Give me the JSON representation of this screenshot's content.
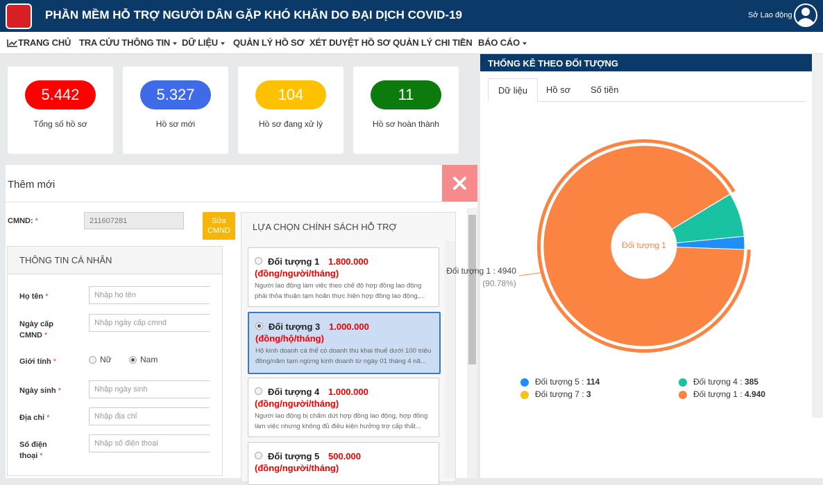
{
  "header": {
    "title": "PHẦN MỀM HỖ TRỢ NGƯỜI DÂN GẶP KHÓ KHĂN DO ĐẠI DỊCH COVID-19",
    "user": "Sở Lao động"
  },
  "nav": [
    {
      "label": "TRANG CHỦ",
      "dropdown": false
    },
    {
      "label": "TRA CỨU THÔNG TIN",
      "dropdown": true
    },
    {
      "label": "DỮ LIỆU",
      "dropdown": true
    },
    {
      "label": "QUẢN LÝ HỒ SƠ",
      "dropdown": false
    },
    {
      "label": "XÉT DUYỆT HỒ SƠ",
      "dropdown": false
    },
    {
      "label": "QUẢN LÝ CHI TIỀN",
      "dropdown": false
    },
    {
      "label": "BÁO CÁO",
      "dropdown": true
    }
  ],
  "stats": [
    {
      "value": "5.442",
      "label": "Tổng số hồ sơ",
      "color": "#ff0000"
    },
    {
      "value": "5.327",
      "label": "Hồ sơ mới",
      "color": "#3f6be8"
    },
    {
      "value": "104",
      "label": "Hồ sơ đang xử lý",
      "color": "#fdc100"
    },
    {
      "value": "11",
      "label": "Hồ sơ hoàn thành",
      "color": "#0c7a0c"
    }
  ],
  "modal": {
    "title": "Thêm mới",
    "required_mark": "*",
    "cmnd_label": "CMND:",
    "cmnd_value": "211607281",
    "edit_button": "Sửa CMND",
    "personal": {
      "title": "THÔNG TIN CÁ NHÂN",
      "fields": [
        {
          "label": "Họ tên",
          "placeholder": "Nhập họ tên"
        },
        {
          "label": "Ngày cấp CMND",
          "placeholder": "Nhập ngày cấp cmnd"
        },
        {
          "label": "Giới tính",
          "options": [
            "Nữ",
            "Nam"
          ],
          "selected": 1
        },
        {
          "label": "Ngày sinh",
          "placeholder": "Nhập ngày sinh"
        },
        {
          "label": "Địa chỉ",
          "placeholder": "Nhập địa chỉ"
        },
        {
          "label": "Số điện thoại",
          "placeholder": "Nhập số điện thoại"
        }
      ]
    },
    "policy": {
      "title": "LỰA CHỌN CHÍNH SÁCH HỖ TRỢ",
      "items": [
        {
          "name": "Đối tượng 1",
          "amount": "1.800.000",
          "unit": "(đồng/người/tháng)",
          "desc": "Người lao động làm việc theo chế độ hợp đồng lao động phải thỏa thuận tạm hoãn thực hiện hợp đồng lao động,...",
          "selected": false
        },
        {
          "name": "Đối tượng 3",
          "amount": "1.000.000",
          "unit": "(đồng/hộ/tháng)",
          "desc": "Hộ kinh doanh cá thể có doanh thu khai thuế dưới 100 triệu đồng/năm tạm ngừng kinh doanh từ ngày 01 tháng 4 nă...",
          "selected": true
        },
        {
          "name": "Đối tượng 4",
          "amount": "1.000.000",
          "unit": "(đồng/người/tháng)",
          "desc": "Người lao động bị chấm dứt hợp đồng lao động, hợp đồng làm việc nhưng không đủ điều kiện hưởng trợ cấp thất...",
          "selected": false
        },
        {
          "name": "Đối tượng 5",
          "amount": "500.000",
          "unit": "(đồng/người/tháng)",
          "selected": false
        }
      ]
    }
  },
  "panel": {
    "title": "THỐNG KÊ THEO ĐỐI TƯỢNG",
    "tabs": [
      "Dữ liệu",
      "Hồ sơ",
      "Số tiền"
    ],
    "active_tab": 0
  },
  "chart_data": {
    "type": "pie",
    "donut": true,
    "center_label": "Đối tượng 1",
    "legend_separator": " : ",
    "series": [
      {
        "name": "Đối tượng 5",
        "color": "#1e8ff5",
        "value": 114,
        "value_label": "114"
      },
      {
        "name": "Đối tượng 4",
        "color": "#19c2a0",
        "value": 385,
        "value_label": "385"
      },
      {
        "name": "Đối tượng 7",
        "color": "#f6c21c",
        "value": 3,
        "value_label": "3"
      },
      {
        "name": "Đối tượng 1",
        "color": "#fb8443",
        "value": 4940,
        "value_label": "4.940"
      }
    ],
    "highlight": 3,
    "callout": {
      "text": "Đối tượng 1 : 4940",
      "percent": "(90.78%)"
    }
  }
}
